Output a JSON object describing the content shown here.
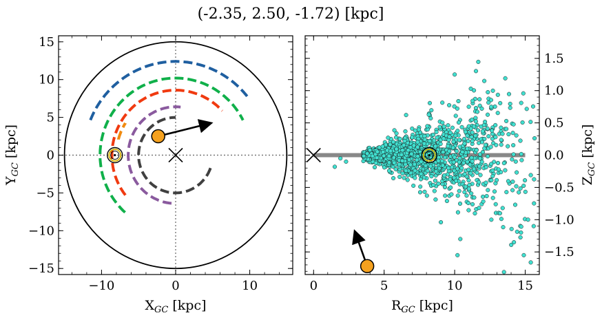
{
  "title": "(-2.35, 2.50, -1.72) [kpc]",
  "chart_data": [
    {
      "type": "scatter",
      "panel": "left",
      "xlabel": "X",
      "xlabel_sub": "GC",
      "xlabel_unit": " [kpc]",
      "ylabel": "Y",
      "ylabel_sub": "GC",
      "ylabel_unit": " [kpc]",
      "xlim": [
        -15.8,
        15.8
      ],
      "ylim": [
        -15.8,
        15.8
      ],
      "xticks": [
        -10,
        0,
        10
      ],
      "xtick_labels": [
        "−10",
        "0",
        "10"
      ],
      "yticks": [
        -15,
        -10,
        -5,
        0,
        5,
        10,
        15
      ],
      "ytick_labels": [
        "−15",
        "−10",
        "−5",
        "0",
        "5",
        "10",
        "15"
      ],
      "boundary_circle_radius": 15,
      "galactic_center": [
        0,
        0
      ],
      "sun": [
        -8.2,
        0
      ],
      "object": [
        -2.35,
        2.5
      ],
      "velocity_arrow": {
        "from": [
          -2.35,
          2.5
        ],
        "to": [
          4.6,
          4.2
        ]
      },
      "arms": [
        {
          "color": "#1f5fa0",
          "r": 12.4,
          "start_deg": 158,
          "end_deg": 37
        },
        {
          "color": "#10b04a",
          "r": 10.2,
          "start_deg": 228,
          "end_deg": 27
        },
        {
          "color": "#f08a10",
          "r": 8.0,
          "start_deg": 165,
          "end_deg": 148
        },
        {
          "color": "#f03a10",
          "r": 8.6,
          "start_deg": 218,
          "end_deg": 43
        },
        {
          "color": "#8a5a9e",
          "r": 6.4,
          "start_deg": 265,
          "end_deg": 84
        },
        {
          "color": "#404040",
          "r": 5.0,
          "start_deg": 340,
          "end_deg": 90
        }
      ]
    },
    {
      "type": "scatter",
      "panel": "right",
      "xlabel": "R",
      "xlabel_sub": "GC",
      "xlabel_unit": " [kpc]",
      "ylabel": "Z",
      "ylabel_sub": "GC",
      "ylabel_unit": " [kpc]",
      "xlim": [
        -0.6,
        16.0
      ],
      "ylim": [
        -1.85,
        1.85
      ],
      "xticks": [
        0,
        5,
        10,
        15
      ],
      "xtick_labels": [
        "0",
        "5",
        "10",
        "15"
      ],
      "yticks": [
        -1.5,
        -1.0,
        -0.5,
        0.0,
        0.5,
        1.0,
        1.5
      ],
      "ytick_labels": [
        "−1.5",
        "−1.0",
        "−0.5",
        "0.0",
        "0.5",
        "1.0",
        "1.5"
      ],
      "disk_line": {
        "r": [
          0,
          15
        ],
        "z": 0
      },
      "galactic_center": [
        0,
        0
      ],
      "sun": [
        8.2,
        0
      ],
      "object": [
        3.8,
        -1.72
      ],
      "velocity_arrow": {
        "from": [
          3.8,
          -1.72
        ],
        "to": [
          2.95,
          -1.2
        ]
      },
      "star_count": 1400,
      "star_color": "#40e0d0"
    }
  ]
}
